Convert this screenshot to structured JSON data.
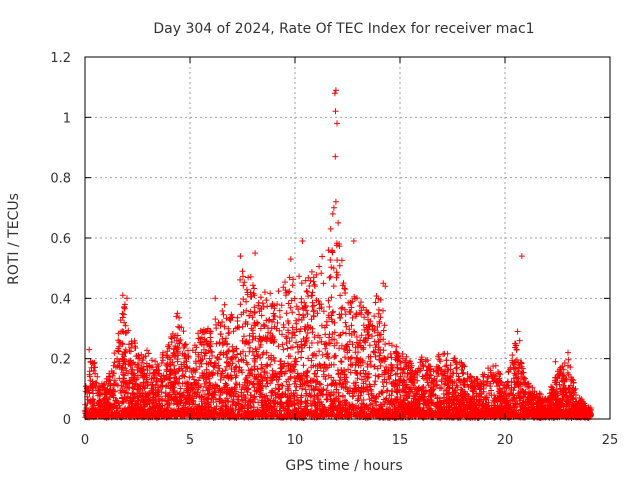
{
  "chart_data": {
    "type": "scatter",
    "title": "Day 304 of 2024, Rate Of TEC Index for receiver mac1",
    "xlabel": "GPS time / hours",
    "ylabel": "ROTI / TECUs",
    "xlim": [
      0,
      25
    ],
    "ylim": [
      0,
      1.2
    ],
    "xticks": [
      0,
      5,
      10,
      15,
      20,
      25
    ],
    "yticks": [
      0,
      0.2,
      0.4,
      0.6,
      0.8,
      1,
      1.2
    ],
    "xtick_labels": [
      "0",
      "5",
      "10",
      "15",
      "20",
      "25"
    ],
    "ytick_labels": [
      "0",
      "0.2",
      "0.4",
      "0.6",
      "0.8",
      "1",
      "1.2"
    ],
    "grid": true,
    "legend": "none",
    "marker": "plus",
    "color": "#ff0000",
    "envelope": {
      "x": [
        0,
        0.3,
        0.7,
        1.0,
        1.5,
        1.8,
        2.2,
        2.6,
        3.0,
        3.5,
        4.0,
        4.5,
        5.0,
        5.5,
        6.0,
        6.5,
        7.0,
        7.5,
        8.0,
        8.5,
        9.0,
        9.5,
        10.0,
        10.5,
        11.0,
        11.5,
        12.0,
        12.5,
        13.0,
        13.5,
        14.0,
        14.5,
        15.0,
        15.5,
        16.0,
        16.5,
        17.0,
        17.5,
        18.0,
        18.5,
        19.0,
        19.5,
        20.0,
        20.5,
        21.0,
        21.5,
        22.0,
        22.5,
        23.0,
        23.5,
        24.0
      ],
      "y": [
        0.08,
        0.22,
        0.1,
        0.12,
        0.25,
        0.4,
        0.3,
        0.2,
        0.22,
        0.18,
        0.25,
        0.34,
        0.22,
        0.3,
        0.3,
        0.38,
        0.33,
        0.5,
        0.48,
        0.42,
        0.4,
        0.45,
        0.5,
        0.45,
        0.5,
        0.55,
        0.6,
        0.45,
        0.4,
        0.35,
        0.42,
        0.25,
        0.22,
        0.18,
        0.2,
        0.18,
        0.22,
        0.2,
        0.18,
        0.12,
        0.15,
        0.18,
        0.1,
        0.25,
        0.12,
        0.08,
        0.06,
        0.15,
        0.2,
        0.06,
        0.03
      ]
    },
    "highlight_points": [
      {
        "x": 11.95,
        "y": 1.09
      },
      {
        "x": 11.9,
        "y": 1.08
      },
      {
        "x": 11.93,
        "y": 1.02
      },
      {
        "x": 12.0,
        "y": 0.98
      },
      {
        "x": 11.92,
        "y": 0.87
      },
      {
        "x": 11.95,
        "y": 0.72
      },
      {
        "x": 11.85,
        "y": 0.7
      },
      {
        "x": 11.8,
        "y": 0.68
      },
      {
        "x": 12.05,
        "y": 0.65
      },
      {
        "x": 11.7,
        "y": 0.63
      },
      {
        "x": 12.1,
        "y": 0.58
      },
      {
        "x": 12.8,
        "y": 0.59
      },
      {
        "x": 10.35,
        "y": 0.59
      },
      {
        "x": 20.8,
        "y": 0.54
      },
      {
        "x": 8.1,
        "y": 0.55
      },
      {
        "x": 7.4,
        "y": 0.54
      },
      {
        "x": 9.8,
        "y": 0.53
      },
      {
        "x": 11.6,
        "y": 0.56
      },
      {
        "x": 14.2,
        "y": 0.45
      },
      {
        "x": 14.3,
        "y": 0.44
      },
      {
        "x": 1.8,
        "y": 0.41
      },
      {
        "x": 2.0,
        "y": 0.4
      },
      {
        "x": 1.9,
        "y": 0.38
      },
      {
        "x": 4.4,
        "y": 0.35
      },
      {
        "x": 4.35,
        "y": 0.34
      },
      {
        "x": 6.2,
        "y": 0.4
      },
      {
        "x": 20.6,
        "y": 0.29
      },
      {
        "x": 20.7,
        "y": 0.26
      },
      {
        "x": 20.5,
        "y": 0.25
      },
      {
        "x": 23.0,
        "y": 0.22
      },
      {
        "x": 22.4,
        "y": 0.19
      },
      {
        "x": 0.2,
        "y": 0.23
      },
      {
        "x": 24.0,
        "y": 0.02
      },
      {
        "x": 24.05,
        "y": 0.01
      }
    ],
    "points_per_hour": 230
  }
}
